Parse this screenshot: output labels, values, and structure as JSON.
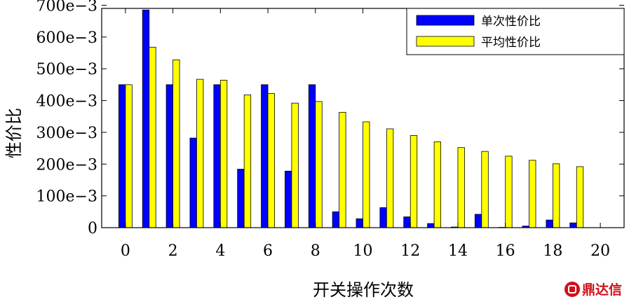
{
  "chart_data": {
    "type": "bar",
    "xlabel": "开关操作次数",
    "ylabel": "性价比",
    "x": [
      0,
      1,
      2,
      3,
      4,
      5,
      6,
      7,
      8,
      9,
      10,
      11,
      12,
      13,
      14,
      15,
      16,
      17,
      18,
      19,
      20
    ],
    "x_ticks": [
      0,
      2,
      4,
      6,
      8,
      10,
      12,
      14,
      16,
      18,
      20
    ],
    "x_tick_labels": [
      "0",
      "2",
      "4",
      "6",
      "8",
      "10",
      "12",
      "14",
      "16",
      "18",
      "20"
    ],
    "xlim": [
      -1,
      21
    ],
    "y_ticks": [
      0,
      100,
      200,
      300,
      400,
      500,
      600,
      700
    ],
    "y_tick_labels": [
      "0",
      "100e−3",
      "200e−3",
      "300e−3",
      "400e−3",
      "500e−3",
      "600e−3",
      "700e−3"
    ],
    "ylim": [
      0,
      690
    ],
    "series": [
      {
        "name": "单次性价比",
        "color": "#0000ff",
        "values": [
          450,
          685,
          450,
          282,
          450,
          184,
          450,
          178,
          450,
          50,
          28,
          63,
          34,
          13,
          2,
          42,
          1,
          5,
          24,
          15,
          null
        ]
      },
      {
        "name": "平均性价比",
        "color": "#ffff00",
        "values": [
          450,
          568,
          528,
          467,
          464,
          418,
          422,
          392,
          397,
          363,
          333,
          311,
          290,
          270,
          252,
          240,
          225,
          212,
          201,
          192,
          null
        ]
      }
    ],
    "legend": "top-right"
  },
  "watermark": {
    "text": "鼎达信",
    "icon": "brand-logo-icon"
  }
}
